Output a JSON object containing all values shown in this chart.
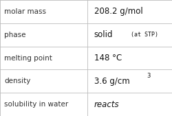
{
  "rows": [
    {
      "label": "molar mass",
      "value": "208.2 g/mol",
      "type": "plain"
    },
    {
      "label": "phase",
      "value": "solid",
      "value_sub": "(at STP)",
      "type": "phase"
    },
    {
      "label": "melting point",
      "value": "148 °C",
      "type": "plain"
    },
    {
      "label": "density",
      "value": "3.6 g/cm",
      "value_super": "3",
      "type": "super"
    },
    {
      "label": "solubility in water",
      "value": "reacts",
      "type": "italic"
    }
  ],
  "col_split": 0.505,
  "bg_color": "#ffffff",
  "line_color": "#bbbbbb",
  "label_color": "#303030",
  "value_color": "#111111",
  "label_fontsize": 7.5,
  "value_fontsize": 8.5,
  "sub_fontsize": 6.0,
  "font_family": "DejaVu Sans"
}
